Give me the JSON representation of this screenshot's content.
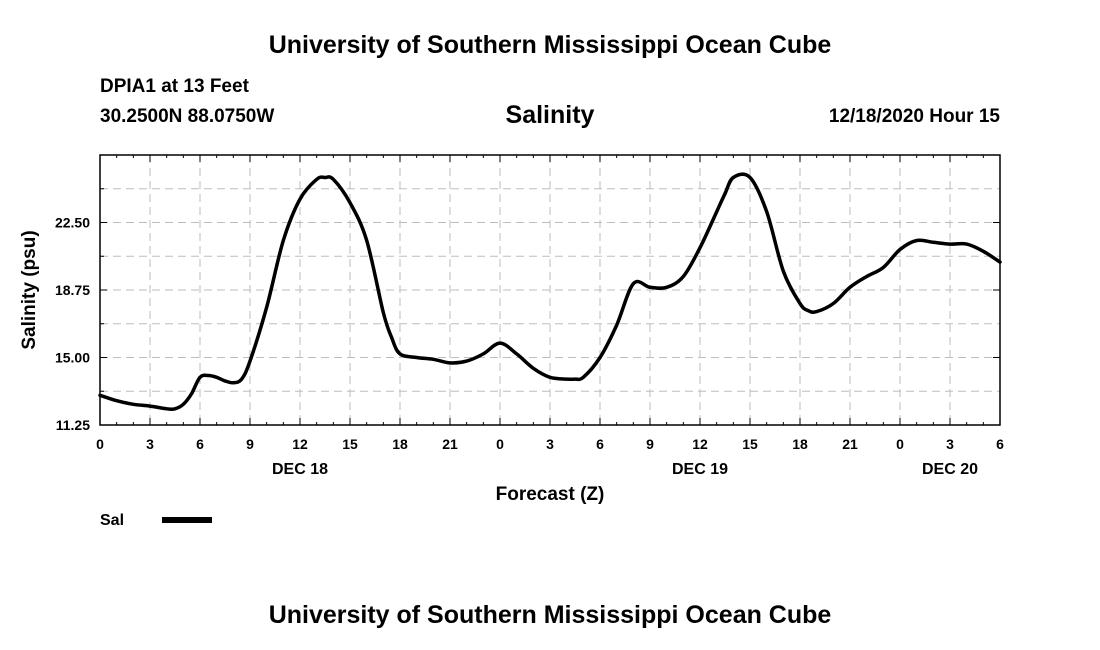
{
  "header": {
    "title_top": "University of Southern Mississippi Ocean Cube",
    "station": "DPIA1 at 13 Feet",
    "coords": "30.2500N 88.0750W",
    "variable": "Salinity",
    "timestamp": "12/18/2020 Hour 15",
    "title_bottom": "University of Southern Mississippi Ocean Cube"
  },
  "legend": {
    "label": "Sal",
    "color": "#000000"
  },
  "chart_data": {
    "type": "line",
    "title": "Salinity",
    "xlabel": "Forecast (Z)",
    "ylabel": "Salinity (psu)",
    "xlim": [
      0,
      54
    ],
    "ylim": [
      11.25,
      26.25
    ],
    "grid": true,
    "legend_position": "bottom-left",
    "x_ticks": [
      {
        "x": 0,
        "label": "0"
      },
      {
        "x": 3,
        "label": "3"
      },
      {
        "x": 6,
        "label": "6"
      },
      {
        "x": 9,
        "label": "9"
      },
      {
        "x": 12,
        "label": "12"
      },
      {
        "x": 15,
        "label": "15"
      },
      {
        "x": 18,
        "label": "18"
      },
      {
        "x": 21,
        "label": "21"
      },
      {
        "x": 24,
        "label": "0"
      },
      {
        "x": 27,
        "label": "3"
      },
      {
        "x": 30,
        "label": "6"
      },
      {
        "x": 33,
        "label": "9"
      },
      {
        "x": 36,
        "label": "12"
      },
      {
        "x": 39,
        "label": "15"
      },
      {
        "x": 42,
        "label": "18"
      },
      {
        "x": 45,
        "label": "21"
      },
      {
        "x": 48,
        "label": "0"
      },
      {
        "x": 51,
        "label": "3"
      },
      {
        "x": 54,
        "label": "6"
      }
    ],
    "y_ticks": [
      {
        "y": 11.25,
        "label": "11.25"
      },
      {
        "y": 15.0,
        "label": "15.00"
      },
      {
        "y": 18.75,
        "label": "18.75"
      },
      {
        "y": 22.5,
        "label": "22.50"
      }
    ],
    "date_labels": [
      {
        "x": 12,
        "label": "DEC 18"
      },
      {
        "x": 36,
        "label": "DEC 19"
      },
      {
        "x": 51,
        "label": "DEC 20"
      }
    ],
    "series": [
      {
        "name": "Sal",
        "color": "#000000",
        "x": [
          0,
          1,
          2,
          3,
          4,
          4.5,
          5,
          5.5,
          6,
          6.5,
          7,
          7.5,
          8,
          8.5,
          9,
          10,
          11,
          12,
          13,
          13.5,
          14,
          15,
          16,
          17,
          17.5,
          18,
          19,
          20,
          21,
          22,
          23,
          24,
          25,
          26,
          27,
          28,
          28.5,
          29,
          30,
          31,
          32,
          33,
          34,
          35,
          36,
          37,
          37.5,
          38,
          39,
          40,
          41,
          42,
          42.5,
          43,
          44,
          45,
          46,
          47,
          48,
          49,
          50,
          51,
          52,
          53,
          54
        ],
        "values": [
          12.9,
          12.6,
          12.4,
          12.3,
          12.15,
          12.15,
          12.4,
          13.0,
          13.9,
          14.0,
          13.9,
          13.7,
          13.6,
          13.8,
          14.8,
          17.8,
          21.5,
          23.8,
          24.9,
          25.0,
          24.9,
          23.6,
          21.5,
          17.5,
          16.1,
          15.2,
          15.0,
          14.9,
          14.7,
          14.8,
          15.2,
          15.8,
          15.2,
          14.4,
          13.9,
          13.8,
          13.8,
          13.9,
          15.0,
          16.8,
          19.1,
          18.9,
          18.9,
          19.5,
          21.1,
          23.1,
          24.1,
          25.0,
          25.0,
          23.1,
          19.8,
          18.0,
          17.6,
          17.55,
          18.0,
          18.9,
          19.5,
          20.0,
          21.0,
          21.5,
          21.4,
          21.3,
          21.3,
          20.9,
          20.3
        ]
      }
    ]
  }
}
